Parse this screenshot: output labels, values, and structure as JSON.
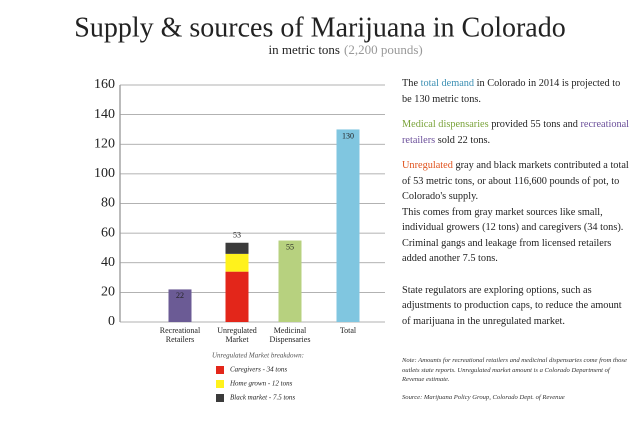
{
  "chart_data": {
    "type": "stacked-bar",
    "title": "Supply & sources of Marijuana in Colorado",
    "subtitle": "in metric tons",
    "subtitle_note": "(2,200 pounds)",
    "categories": [
      [
        "Recreational",
        "Retailers"
      ],
      [
        "Unregulated",
        "Market"
      ],
      [
        "Medicinal",
        "Dispensaries"
      ],
      [
        "Total"
      ]
    ],
    "values": [
      22,
      53,
      55,
      130
    ],
    "colors": [
      "#6b5b95",
      null,
      "#b7d17f",
      "#80c6e0"
    ],
    "series": [
      {
        "name": "Caregivers - 34 tons",
        "color": "#e3261a",
        "values": [
          null,
          34,
          null,
          null
        ]
      },
      {
        "name": "Home grown - 12 tons",
        "color": "#fff21c",
        "values": [
          null,
          12,
          null,
          null
        ]
      },
      {
        "name": "Black market - 7.5 tons",
        "color": "#3b3b3b",
        "values": [
          null,
          7.5,
          null,
          null
        ]
      }
    ],
    "legend_title": "Unregulated Market breakdown:",
    "ylim": [
      0,
      160
    ],
    "yticks": [
      0,
      20,
      40,
      60,
      80,
      100,
      120,
      140,
      160
    ],
    "grid": true
  },
  "sidebar": [
    [
      "The ",
      "total demand",
      " in Colorado in 2014 is projected to be 130 metric tons."
    ],
    [
      "Medical dispensaries",
      " provided 55 tons and ",
      "recreational retailers",
      " sold 22 tons."
    ],
    [
      "Unregulated",
      " gray and black markets contributed a total of 53 metric tons, or about 116,600 pounds of pot, to Colorado's supply."
    ],
    [
      "This comes from gray market sources like small, individual growers (12 tons) and caregivers (34 tons). Criminal gangs and leakage from licensed retailers added another 7.5 tons."
    ],
    [
      "State regulators are exploring options, such as adjustments to production caps, to reduce the amount of marijuana in the unregulated market."
    ]
  ],
  "footnote": {
    "note": "Note:  Amounts for recreational retailers and medicinal dispensaries come from those outlets state reports. Unregulated market amount is a Colorado Department of Revenue estimate.",
    "source": "Source: Marijuana Policy Group, Colorado Dept. of Revenue"
  }
}
